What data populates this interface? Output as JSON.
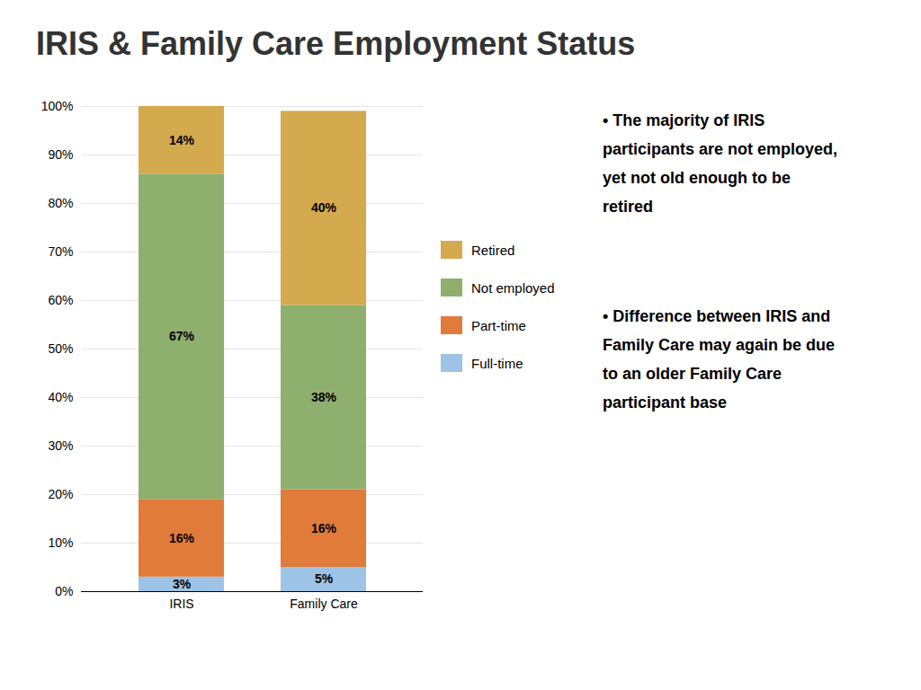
{
  "chart_data": {
    "type": "bar",
    "title": "IRIS & Family Care Employment Status",
    "categories": [
      "IRIS",
      "Family Care"
    ],
    "series": [
      {
        "name": "Full-time",
        "color": "#9DC3E6",
        "values": [
          3,
          5
        ],
        "value_labels": [
          "3%",
          "5%"
        ]
      },
      {
        "name": "Part-time",
        "color": "#E07B3A",
        "values": [
          16,
          16
        ],
        "value_labels": [
          "16%",
          "16%"
        ]
      },
      {
        "name": "Not employed",
        "color": "#8FAF6E",
        "values": [
          67,
          38
        ],
        "value_labels": [
          "67%",
          "38%"
        ]
      },
      {
        "name": "Retired",
        "color": "#D4AA4E",
        "values": [
          14,
          40
        ],
        "value_labels": [
          "14%",
          "40%"
        ]
      }
    ],
    "stacked": true,
    "data_labels": true,
    "ylim": [
      0,
      100
    ],
    "yticks": [
      {
        "value": 0,
        "label": "0%"
      },
      {
        "value": 10,
        "label": "10%"
      },
      {
        "value": 20,
        "label": "20%"
      },
      {
        "value": 30,
        "label": "30%"
      },
      {
        "value": 40,
        "label": "40%"
      },
      {
        "value": 50,
        "label": "50%"
      },
      {
        "value": 60,
        "label": "60%"
      },
      {
        "value": 70,
        "label": "70%"
      },
      {
        "value": 80,
        "label": "80%"
      },
      {
        "value": 90,
        "label": "90%"
      },
      {
        "value": 100,
        "label": "100%"
      }
    ],
    "grid": true,
    "legend": "right",
    "annotations": [
      [
        "• The majority of IRIS",
        "participants are not employed,",
        "yet not old enough to be",
        "retired"
      ],
      [
        "• Difference between IRIS and",
        "Family Care may again be due",
        "to an older Family Care",
        "participant base"
      ]
    ]
  }
}
